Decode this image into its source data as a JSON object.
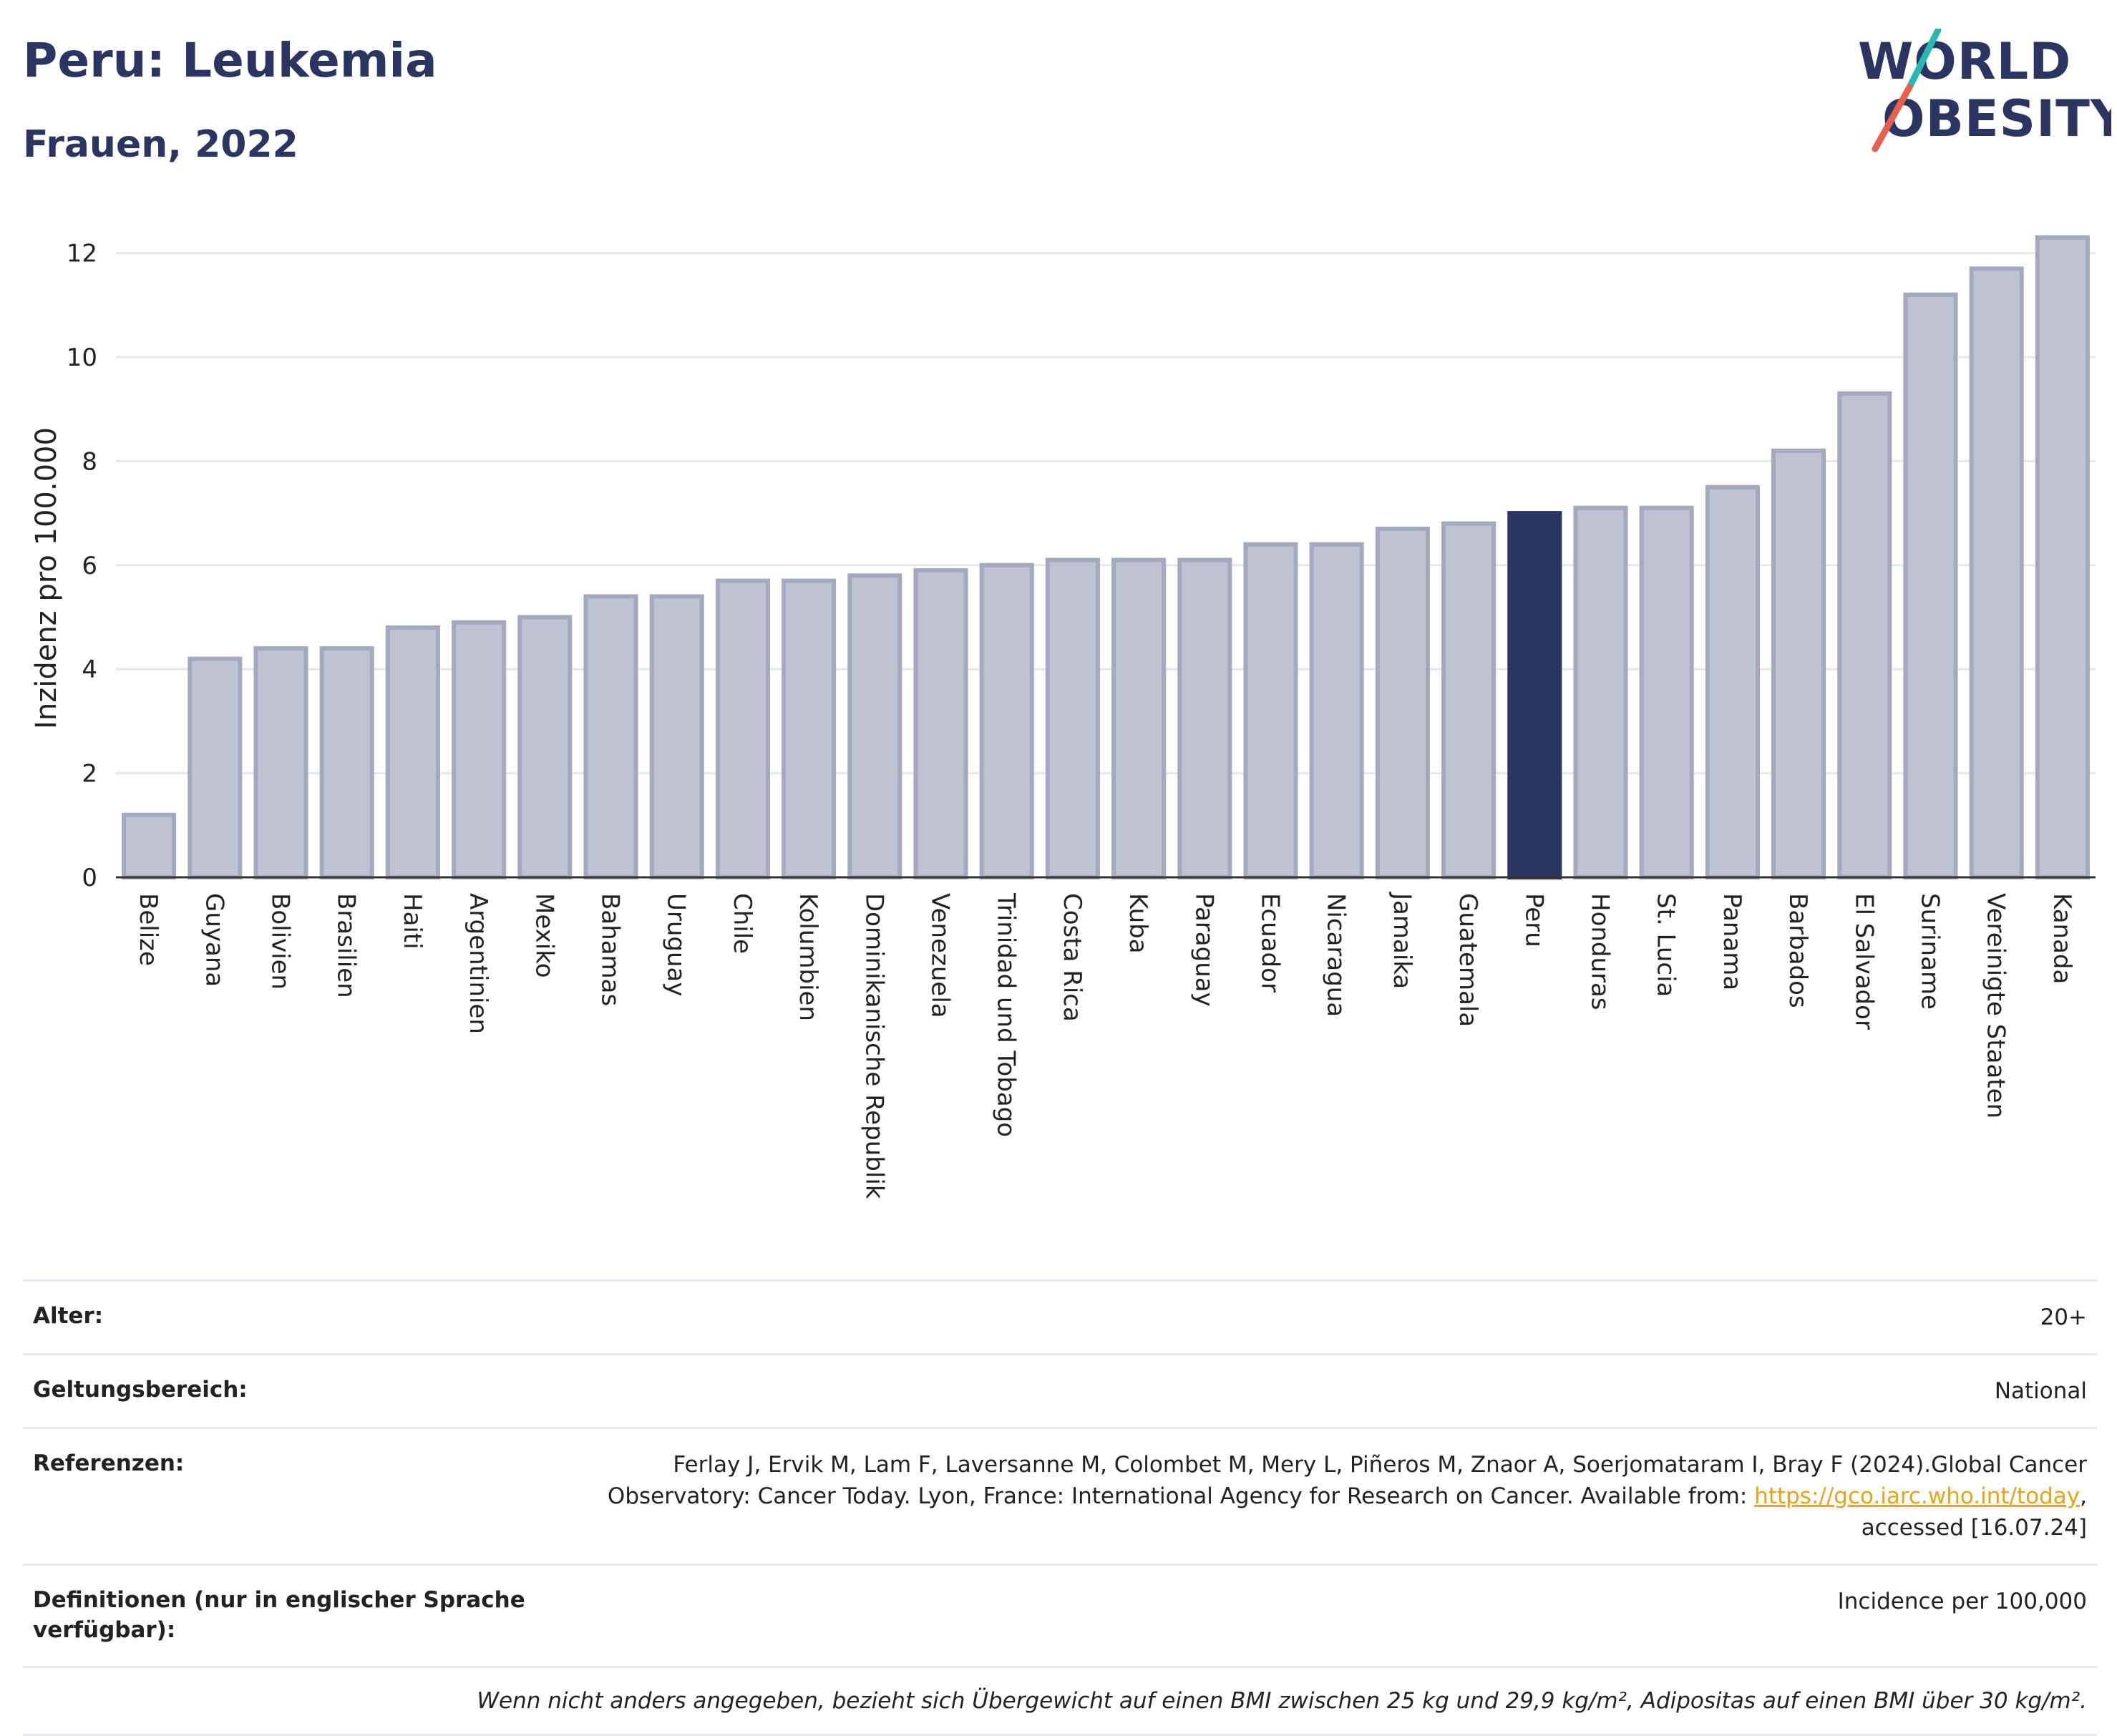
{
  "header": {
    "title": "Peru: Leukemia",
    "subtitle": "Frauen, 2022"
  },
  "logo": {
    "line1": "WORLD",
    "line2": "OBESITY",
    "accent_teal": "#2bb7b3",
    "accent_red": "#e8604c"
  },
  "colors": {
    "bar_default": "#bfc3d1",
    "bar_border": "#a3a9be",
    "bar_highlight": "#2a3561"
  },
  "chart_data": {
    "type": "bar",
    "title": "",
    "xlabel": "",
    "ylabel": "Inzidenz pro 100.000",
    "ylim": [
      0,
      12.6
    ],
    "yticks": [
      0,
      2,
      4,
      6,
      8,
      10,
      12
    ],
    "grid": true,
    "highlight": "Peru",
    "categories": [
      "Belize",
      "Guyana",
      "Bolivien",
      "Brasilien",
      "Haiti",
      "Argentinien",
      "Mexiko",
      "Bahamas",
      "Uruguay",
      "Chile",
      "Kolumbien",
      "Dominikanische Republik",
      "Venezuela",
      "Trinidad und Tobago",
      "Costa Rica",
      "Kuba",
      "Paraguay",
      "Ecuador",
      "Nicaragua",
      "Jamaika",
      "Guatemala",
      "Peru",
      "Honduras",
      "St. Lucia",
      "Panama",
      "Barbados",
      "El Salvador",
      "Suriname",
      "Vereinigte Staaten",
      "Kanada"
    ],
    "values": [
      1.2,
      4.2,
      4.4,
      4.4,
      4.8,
      4.9,
      5.0,
      5.4,
      5.4,
      5.7,
      5.7,
      5.8,
      5.9,
      6.0,
      6.1,
      6.1,
      6.1,
      6.4,
      6.4,
      6.7,
      6.8,
      7.0,
      7.1,
      7.1,
      7.5,
      8.2,
      9.3,
      11.2,
      11.7,
      12.3
    ]
  },
  "info": {
    "age_label": "Alter:",
    "age_value": "20+",
    "scope_label": "Geltungsbereich:",
    "scope_value": "National",
    "ref_label": "Referenzen:",
    "ref_text_1": "Ferlay J, Ervik M, Lam F, Laversanne M, Colombet M, Mery L, Piñeros M, Znaor A, Soerjomataram I, Bray F (2024).Global Cancer",
    "ref_text_2": "Observatory: Cancer Today. Lyon, France: International Agency for Research on Cancer. Available from: ",
    "ref_link": "https://gco.iarc.who.int/today",
    "ref_text_3": ",",
    "ref_text_4": "accessed [16.07.24]",
    "def_label": "Definitionen (nur in englischer Sprache verfügbar):",
    "def_value": "Incidence per 100,000",
    "note": "Wenn nicht anders angegeben, bezieht sich Übergewicht auf einen BMI zwischen 25 kg und 29,9 kg/m², Adipositas auf einen BMI über 30 kg/m²."
  }
}
